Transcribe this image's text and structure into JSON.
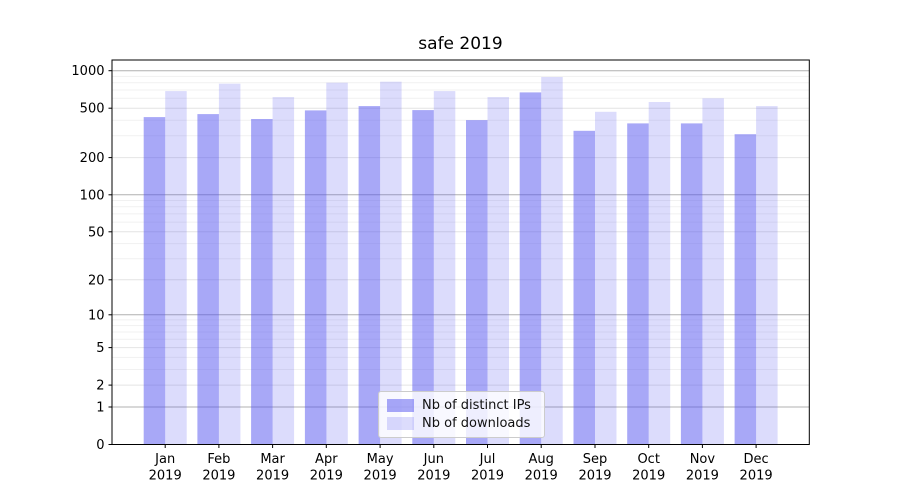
{
  "title": "safe 2019",
  "colors": {
    "bar_base": "#5151ef",
    "alpha_distinct_ips": 0.5,
    "alpha_downloads": 0.2,
    "grid_major": "#b0b0b0",
    "grid_mid": "#e4e4e4",
    "grid_minor": "#f1f1f1",
    "spine": "#000000",
    "legend_border": "#cccccc"
  },
  "chart_data": {
    "type": "bar",
    "title": "safe 2019",
    "categories": [
      "Jan",
      "Feb",
      "Mar",
      "Apr",
      "May",
      "Jun",
      "Jul",
      "Aug",
      "Sep",
      "Oct",
      "Nov",
      "Dec"
    ],
    "category_year": "2019",
    "series": [
      {
        "key": "distinct-ips",
        "name": "Nb of distinct IPs",
        "values": [
          424,
          448,
          409,
          480,
          520,
          483,
          401,
          670,
          329,
          377,
          377,
          309
        ]
      },
      {
        "key": "downloads",
        "name": "Nb of downloads",
        "values": [
          686,
          787,
          614,
          801,
          817,
          686,
          614,
          890,
          468,
          561,
          600,
          520
        ]
      }
    ],
    "xlabel": "",
    "ylabel": "",
    "yscale": "log1p",
    "ylim": [
      0,
      1220
    ],
    "yticks": [
      0,
      1,
      2,
      5,
      10,
      20,
      50,
      100,
      200,
      500,
      1000
    ],
    "minor_gridlines": [
      3,
      4,
      6,
      7,
      8,
      9,
      30,
      40,
      60,
      70,
      80,
      90,
      300,
      400,
      600,
      700,
      800,
      900
    ],
    "grid": true,
    "legend_position": "lower center"
  }
}
